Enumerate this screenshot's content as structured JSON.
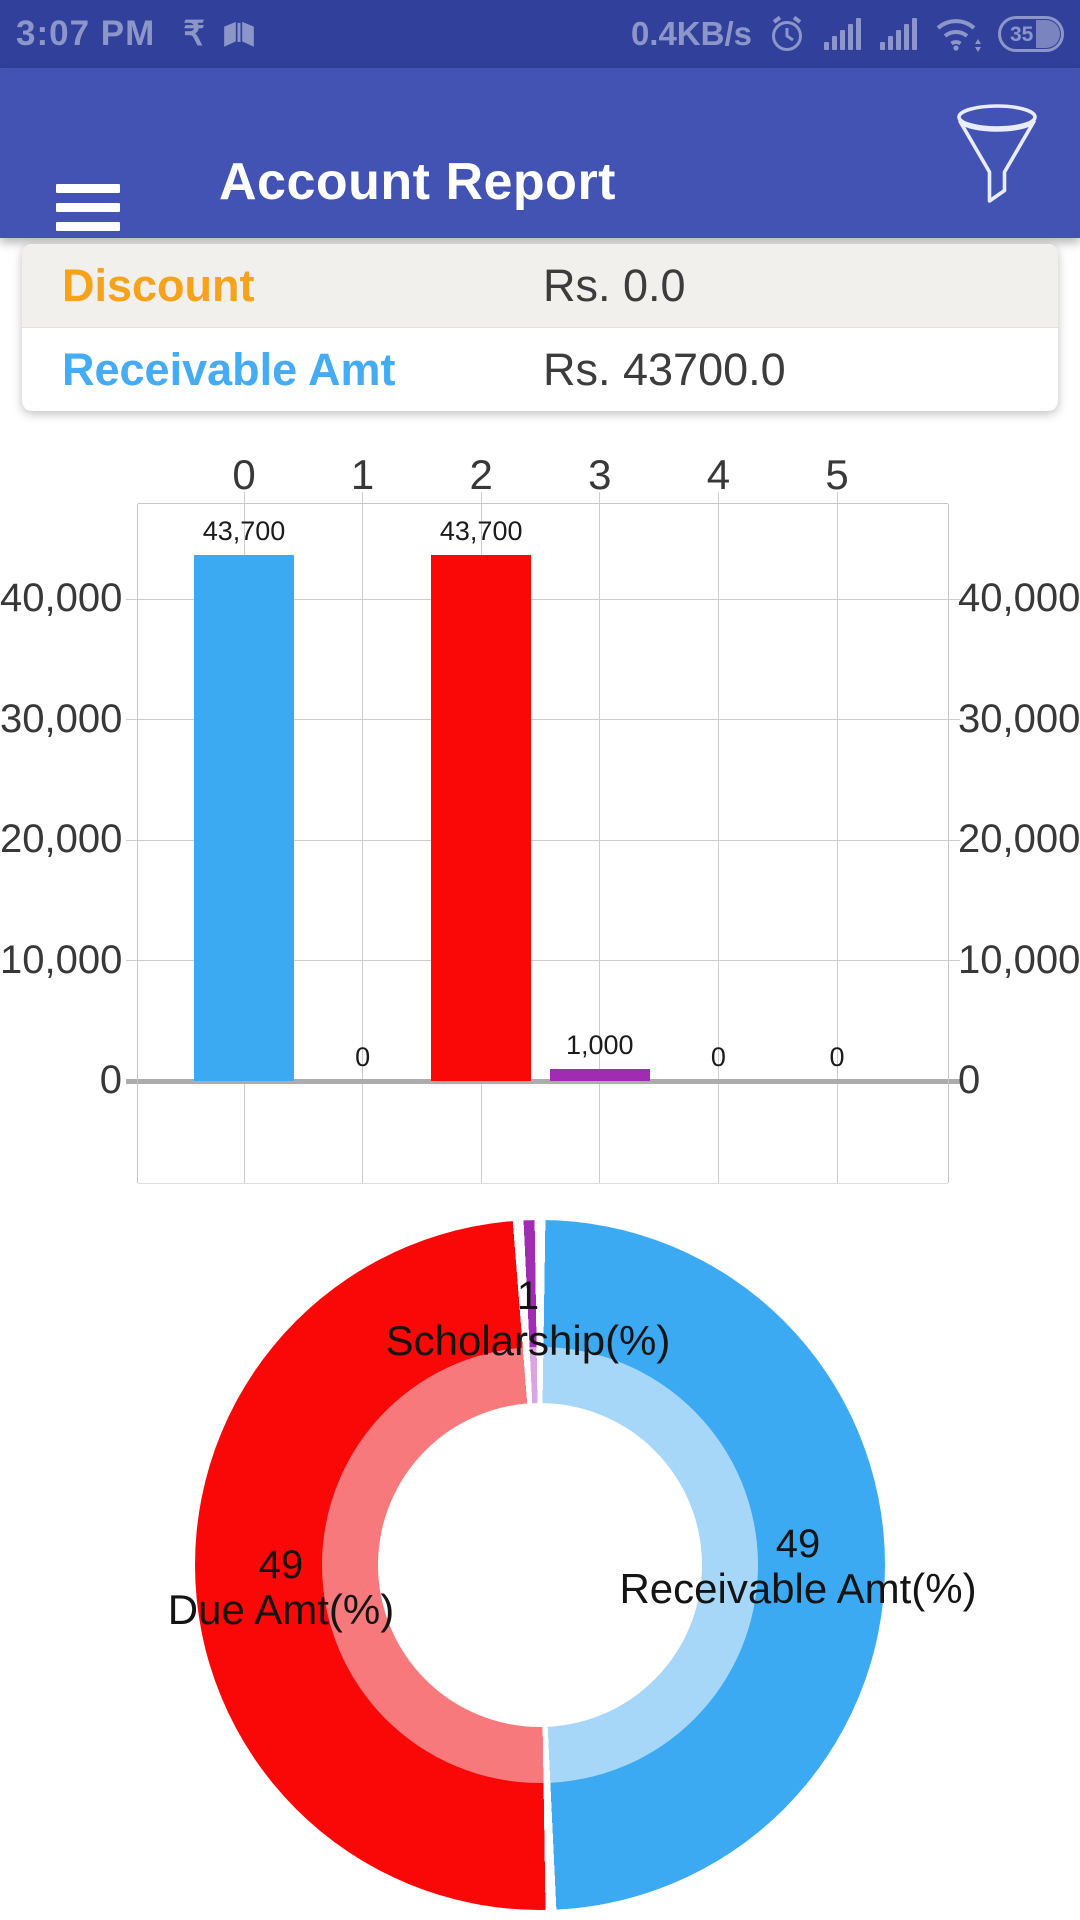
{
  "status_bar": {
    "time": "3:07 PM",
    "net_speed": "0.4KB/s",
    "battery_level": "35"
  },
  "header": {
    "title": "Account Report"
  },
  "summary": {
    "rows": [
      {
        "label": "Discount",
        "value": "Rs. 0.0",
        "label_color": "#F6A21A"
      },
      {
        "label": "Receivable Amt",
        "value": "Rs. 43700.0",
        "label_color": "#45ABF3"
      }
    ]
  },
  "chart_data": [
    {
      "type": "bar",
      "title": "",
      "xlabel": "",
      "ylabel": "",
      "categories": [
        "0",
        "1",
        "2",
        "3",
        "4",
        "5"
      ],
      "values": [
        43700,
        0,
        43700,
        1000,
        0,
        0
      ],
      "value_labels": [
        "43,700",
        "0",
        "43,700",
        "1,000",
        "0",
        "0"
      ],
      "bar_colors": [
        "#3BAAF2",
        null,
        "#FA0707",
        "#A22BB4",
        null,
        null
      ],
      "y_ticks": [
        0,
        10000,
        20000,
        30000,
        40000
      ],
      "y_tick_labels": [
        "0",
        "10,000",
        "20,000",
        "30,000",
        "40,000"
      ],
      "ylim": [
        -8400,
        47900
      ],
      "x_axis_position": "top",
      "y_axis_labels": "both-sides",
      "grid": true,
      "grid_color": "#CDCDCD",
      "zero_line_color": "#ACACAC"
    },
    {
      "type": "pie",
      "subtype": "donut",
      "title": "",
      "legend_position": "none",
      "labels_on_chart": true,
      "slices": [
        {
          "label": "Receivable Amt(%)",
          "value": 49,
          "color": "#3BAAF2",
          "inner_ring_color": "#A6D7F9"
        },
        {
          "label": "Due Amt(%)",
          "value": 49,
          "color": "#FA0707",
          "inner_ring_color": "#F8797C"
        },
        {
          "label": "Scholarship(%)",
          "value": 1,
          "color": "#A22BB4",
          "inner_ring_color": "#D9A6E3"
        }
      ]
    }
  ]
}
